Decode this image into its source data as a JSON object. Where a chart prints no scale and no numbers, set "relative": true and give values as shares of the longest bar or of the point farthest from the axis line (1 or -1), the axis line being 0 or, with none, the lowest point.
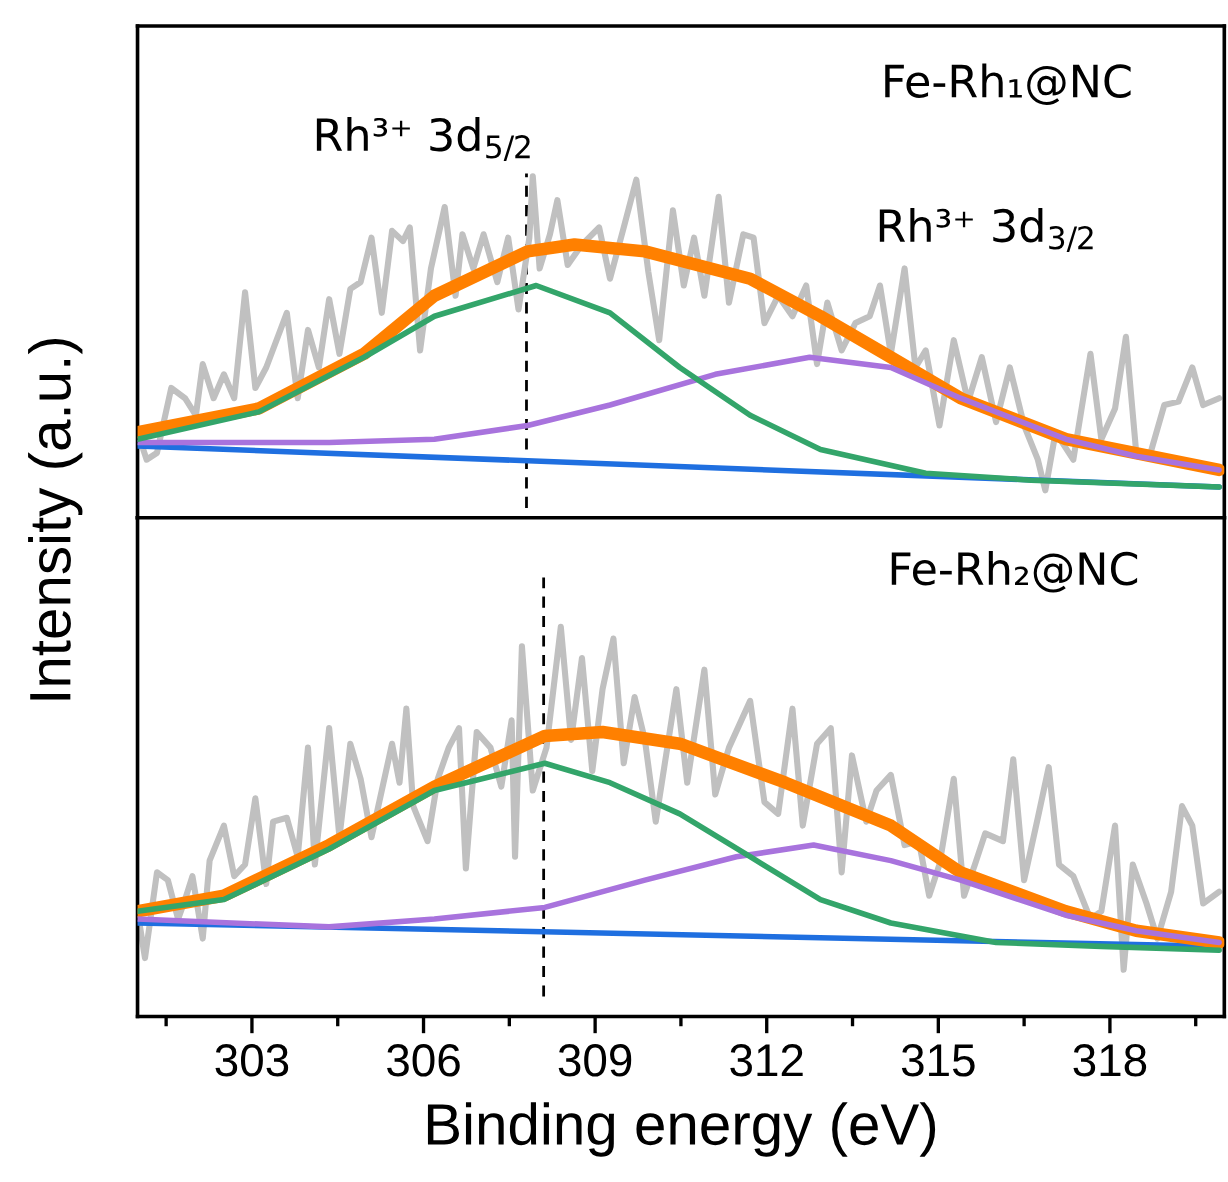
{
  "chart_data": [
    {
      "type": "line",
      "relative": true,
      "tick_labels": false,
      "xlim": [
        301,
        320
      ],
      "annotations": [
        "Fe-Rh₁@NC",
        "Rh³⁺ 3d$_{5/2}$",
        "Rh³⁺ 3d$_{3/2}$"
      ],
      "ref_lines": [
        {
          "axis": "x",
          "value": 307.8,
          "line_style": "dashed",
          "color": "#000000"
        }
      ],
      "series": [
        {
          "color": "#c0c0c0",
          "x": [
            301.0,
            301.16,
            301.34,
            301.59,
            301.83,
            302.02,
            302.14,
            302.33,
            302.51,
            302.69,
            302.88,
            303.06,
            303.25,
            303.61,
            303.8,
            303.98,
            304.17,
            304.35,
            304.53,
            304.72,
            304.9,
            305.09,
            305.27,
            305.45,
            305.64,
            305.76,
            305.94,
            306.13,
            306.37,
            306.56,
            306.68,
            306.87,
            307.05,
            307.29,
            307.48,
            307.66,
            307.85,
            307.91,
            308.03,
            308.21,
            308.34,
            308.52,
            308.77,
            309.07,
            309.26,
            309.5,
            309.72,
            309.93,
            310.12,
            310.36,
            310.55,
            310.73,
            310.91,
            311.16,
            311.34,
            311.59,
            311.77,
            311.96,
            312.2,
            312.45,
            312.69,
            312.88,
            313.06,
            313.31,
            313.55,
            313.8,
            313.98,
            314.17,
            314.41,
            314.6,
            314.78,
            315.02,
            315.27,
            315.52,
            315.76,
            316.01,
            316.25,
            316.5,
            316.74,
            316.87,
            317.05,
            317.36,
            317.66,
            317.85,
            318.09,
            318.28,
            318.46,
            318.71,
            318.95,
            319.2,
            319.44,
            319.63,
            319.91
          ],
          "values": [
            0.25,
            0.17,
            0.19,
            0.38,
            0.35,
            0.3,
            0.45,
            0.35,
            0.42,
            0.35,
            0.66,
            0.38,
            0.44,
            0.6,
            0.35,
            0.55,
            0.44,
            0.64,
            0.48,
            0.67,
            0.69,
            0.82,
            0.6,
            0.84,
            0.81,
            0.85,
            0.49,
            0.73,
            0.91,
            0.65,
            0.83,
            0.73,
            0.83,
            0.69,
            0.82,
            0.61,
            0.82,
            1.0,
            0.73,
            0.83,
            0.93,
            0.74,
            0.8,
            0.85,
            0.7,
            0.85,
            0.99,
            0.72,
            0.52,
            0.9,
            0.68,
            0.82,
            0.65,
            0.94,
            0.63,
            0.83,
            0.82,
            0.57,
            0.65,
            0.59,
            0.68,
            0.45,
            0.63,
            0.49,
            0.57,
            0.59,
            0.68,
            0.48,
            0.73,
            0.44,
            0.49,
            0.27,
            0.52,
            0.34,
            0.47,
            0.28,
            0.44,
            0.27,
            0.17,
            0.08,
            0.25,
            0.17,
            0.48,
            0.23,
            0.32,
            0.53,
            0.19,
            0.19,
            0.33,
            0.34,
            0.44,
            0.33,
            0.35
          ]
        },
        {
          "color": "#1f6fe0",
          "x": [
            301.0,
            319.91
          ],
          "values": [
            0.21,
            0.09
          ]
        },
        {
          "color": "#ff8000",
          "x": [
            301.0,
            303.12,
            304.96,
            306.19,
            307.82,
            308.64,
            309.87,
            311.71,
            312.94,
            314.17,
            315.39,
            317.23,
            319.91
          ],
          "values": [
            0.25,
            0.32,
            0.48,
            0.65,
            0.78,
            0.8,
            0.78,
            0.7,
            0.59,
            0.47,
            0.35,
            0.23,
            0.14
          ]
        },
        {
          "color": "#a873dd",
          "x": [
            301.0,
            304.35,
            306.19,
            307.82,
            309.26,
            311.1,
            312.75,
            314.17,
            315.39,
            317.23,
            318.46,
            319.91
          ],
          "values": [
            0.22,
            0.22,
            0.23,
            0.27,
            0.33,
            0.42,
            0.47,
            0.44,
            0.35,
            0.23,
            0.18,
            0.14
          ]
        },
        {
          "color": "#33a56a",
          "x": [
            301.0,
            303.12,
            304.96,
            306.19,
            307.97,
            309.26,
            310.48,
            311.71,
            312.94,
            314.78,
            316.62,
            319.91
          ],
          "values": [
            0.23,
            0.31,
            0.47,
            0.59,
            0.68,
            0.6,
            0.44,
            0.3,
            0.2,
            0.13,
            0.11,
            0.09
          ]
        }
      ]
    },
    {
      "type": "line",
      "relative": true,
      "tick_labels": "x",
      "xlim": [
        301,
        320
      ],
      "xlabel": "Binding energy (eV)",
      "ylabel": "Intensity (a.u.)",
      "xticks": [
        {
          "value": 301.5,
          "label": null
        },
        303,
        {
          "value": 304.5,
          "label": null
        },
        306,
        {
          "value": 307.5,
          "label": null
        },
        309,
        {
          "value": 310.5,
          "label": null
        },
        312,
        {
          "value": 313.5,
          "label": null
        },
        315,
        {
          "value": 316.5,
          "label": null
        },
        318,
        {
          "value": 319.5,
          "label": null
        }
      ],
      "annotations": [
        "Fe-Rh₂@NC"
      ],
      "ref_lines": [
        {
          "axis": "x",
          "value": 308.1,
          "line_style": "dashed",
          "color": "#000000"
        }
      ],
      "series": [
        {
          "color": "#c0c0c0",
          "x": [
            301.0,
            301.13,
            301.34,
            301.53,
            301.71,
            301.83,
            301.96,
            302.14,
            302.26,
            302.51,
            302.69,
            302.88,
            303.06,
            303.25,
            303.37,
            303.61,
            303.8,
            303.98,
            304.1,
            304.35,
            304.53,
            304.72,
            304.9,
            305.09,
            305.27,
            305.45,
            305.58,
            305.7,
            305.82,
            306.07,
            306.25,
            306.44,
            306.62,
            306.74,
            306.93,
            307.17,
            307.36,
            307.54,
            307.6,
            307.72,
            307.91,
            308.15,
            308.4,
            308.58,
            308.77,
            308.95,
            309.13,
            309.32,
            309.5,
            309.69,
            309.87,
            310.06,
            310.24,
            310.42,
            310.61,
            310.91,
            311.1,
            311.34,
            311.71,
            311.96,
            312.2,
            312.45,
            312.63,
            312.88,
            313.12,
            313.31,
            313.49,
            313.74,
            313.92,
            314.17,
            314.41,
            314.66,
            314.84,
            315.02,
            315.27,
            315.45,
            315.64,
            315.82,
            316.13,
            316.31,
            316.5,
            316.74,
            316.93,
            317.11,
            317.36,
            317.66,
            317.85,
            318.09,
            318.24,
            318.4,
            318.64,
            318.83,
            319.07,
            319.26,
            319.44,
            319.63,
            319.91
          ],
          "values": [
            0.27,
            0.15,
            0.37,
            0.35,
            0.25,
            0.3,
            0.36,
            0.2,
            0.4,
            0.49,
            0.36,
            0.39,
            0.56,
            0.34,
            0.5,
            0.51,
            0.41,
            0.69,
            0.39,
            0.74,
            0.46,
            0.7,
            0.61,
            0.46,
            0.58,
            0.7,
            0.6,
            0.79,
            0.54,
            0.45,
            0.61,
            0.69,
            0.74,
            0.38,
            0.73,
            0.69,
            0.59,
            0.76,
            0.41,
            0.95,
            0.58,
            0.69,
            1.0,
            0.71,
            0.92,
            0.63,
            0.84,
            0.97,
            0.65,
            0.82,
            0.71,
            0.5,
            0.67,
            0.84,
            0.6,
            0.89,
            0.57,
            0.69,
            0.81,
            0.55,
            0.52,
            0.79,
            0.49,
            0.7,
            0.74,
            0.37,
            0.67,
            0.5,
            0.58,
            0.62,
            0.44,
            0.45,
            0.31,
            0.39,
            0.61,
            0.31,
            0.39,
            0.47,
            0.45,
            0.66,
            0.35,
            0.51,
            0.64,
            0.39,
            0.36,
            0.25,
            0.27,
            0.49,
            0.12,
            0.39,
            0.29,
            0.2,
            0.32,
            0.54,
            0.49,
            0.29,
            0.32
          ]
        },
        {
          "color": "#1f6fe0",
          "x": [
            301.0,
            319.91
          ],
          "values": [
            0.24,
            0.18
          ]
        },
        {
          "color": "#ff8000",
          "x": [
            301.0,
            302.51,
            304.35,
            306.19,
            308.12,
            309.13,
            310.48,
            312.33,
            314.17,
            315.39,
            317.23,
            318.46,
            319.91
          ],
          "values": [
            0.27,
            0.31,
            0.44,
            0.59,
            0.72,
            0.73,
            0.7,
            0.6,
            0.49,
            0.37,
            0.27,
            0.22,
            0.19
          ]
        },
        {
          "color": "#a873dd",
          "x": [
            301.0,
            304.35,
            306.19,
            308.12,
            309.87,
            311.47,
            312.82,
            314.17,
            315.39,
            317.23,
            318.46,
            319.91
          ],
          "values": [
            0.25,
            0.23,
            0.25,
            0.28,
            0.35,
            0.41,
            0.44,
            0.4,
            0.35,
            0.26,
            0.22,
            0.19
          ]
        },
        {
          "color": "#33a56a",
          "x": [
            301.0,
            302.51,
            304.35,
            306.19,
            308.12,
            309.26,
            310.48,
            311.71,
            312.94,
            314.17,
            316.01,
            317.85,
            319.91
          ],
          "values": [
            0.27,
            0.3,
            0.43,
            0.58,
            0.65,
            0.6,
            0.52,
            0.41,
            0.3,
            0.24,
            0.19,
            0.18,
            0.17
          ]
        }
      ]
    }
  ]
}
